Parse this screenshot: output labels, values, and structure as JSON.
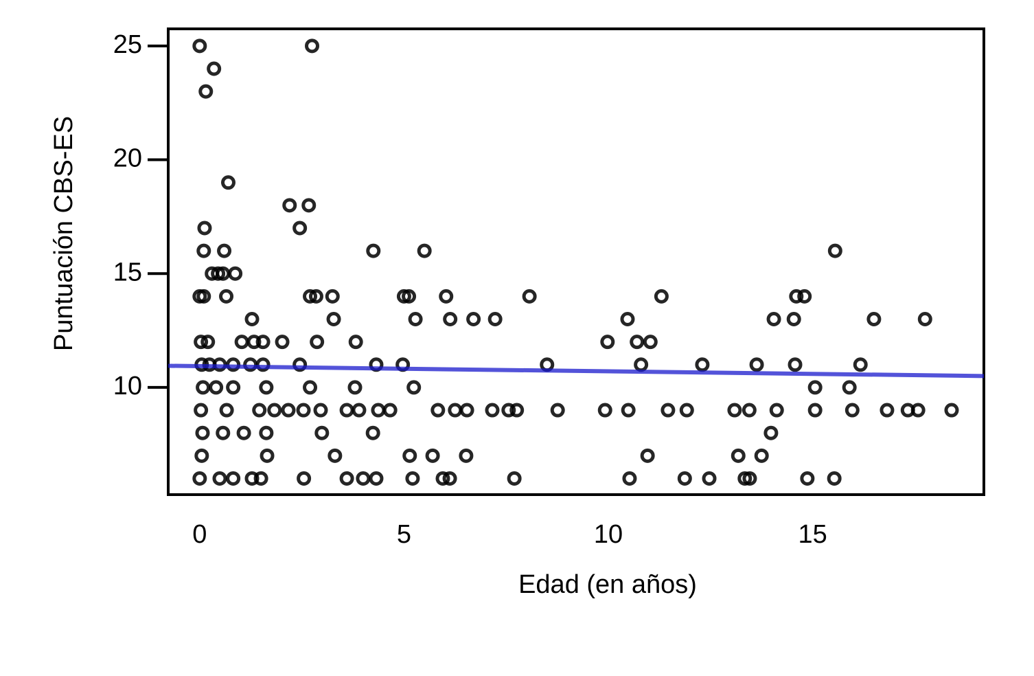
{
  "chart_data": {
    "type": "scatter",
    "x_label": "Edad (en años)",
    "y_label": "Puntuación CBS-ES",
    "xlim": [
      -0.77,
      19.19
    ],
    "ylim": [
      5.29,
      25.75
    ],
    "xticks": [
      0,
      5,
      10,
      15
    ],
    "yticks": [
      10,
      15,
      20,
      25
    ],
    "color": "#000000",
    "x": [
      0.0,
      2.75,
      0.35,
      0.15,
      0.7,
      2.2,
      2.67,
      0.12,
      2.45,
      0.1,
      0.6,
      4.25,
      5.5,
      15.55,
      0.3,
      0.45,
      0.57,
      0.87,
      0.0,
      0.1,
      0.65,
      2.7,
      2.85,
      3.25,
      5.0,
      5.12,
      6.03,
      8.07,
      11.3,
      14.6,
      14.8,
      1.28,
      3.28,
      5.28,
      6.13,
      6.7,
      7.23,
      10.47,
      14.05,
      14.54,
      16.5,
      17.75,
      0.03,
      0.2,
      1.03,
      1.33,
      1.55,
      2.02,
      2.87,
      3.82,
      9.98,
      10.7,
      11.03,
      0.05,
      0.24,
      0.49,
      0.82,
      1.24,
      1.55,
      2.45,
      4.32,
      4.97,
      8.5,
      10.8,
      12.3,
      13.63,
      14.57,
      16.17,
      0.08,
      0.4,
      0.82,
      1.63,
      2.7,
      3.8,
      5.24,
      15.06,
      15.9,
      0.03,
      0.66,
      1.46,
      1.83,
      2.17,
      2.54,
      2.96,
      3.6,
      3.9,
      4.37,
      4.66,
      5.83,
      6.25,
      6.54,
      7.16,
      7.56,
      7.76,
      8.76,
      9.92,
      10.49,
      11.46,
      11.92,
      13.09,
      13.45,
      14.12,
      15.06,
      15.97,
      16.82,
      17.33,
      17.58,
      18.4,
      0.07,
      0.57,
      1.08,
      1.63,
      2.99,
      4.24,
      13.98,
      0.05,
      1.65,
      3.31,
      5.14,
      5.7,
      6.52,
      10.96,
      13.18,
      13.75,
      0.0,
      0.49,
      0.82,
      1.28,
      1.5,
      2.55,
      3.6,
      4.0,
      4.32,
      5.21,
      5.95,
      6.12,
      7.7,
      10.52,
      11.87,
      12.47,
      13.34,
      13.46,
      14.87,
      15.53
    ],
    "values": [
      25,
      25,
      24,
      23,
      19,
      18,
      18,
      17,
      17,
      16,
      16,
      16,
      16,
      16,
      15,
      15,
      15,
      15,
      14,
      14,
      14,
      14,
      14,
      14,
      14,
      14,
      14,
      14,
      14,
      14,
      14,
      13,
      13,
      13,
      13,
      13,
      13,
      13,
      13,
      13,
      13,
      13,
      12,
      12,
      12,
      12,
      12,
      12,
      12,
      12,
      12,
      12,
      12,
      11,
      11,
      11,
      11,
      11,
      11,
      11,
      11,
      11,
      11,
      11,
      11,
      11,
      11,
      11,
      10,
      10,
      10,
      10,
      10,
      10,
      10,
      10,
      10,
      9,
      9,
      9,
      9,
      9,
      9,
      9,
      9,
      9,
      9,
      9,
      9,
      9,
      9,
      9,
      9,
      9,
      9,
      9,
      9,
      9,
      9,
      9,
      9,
      9,
      9,
      9,
      9,
      9,
      9,
      9,
      8,
      8,
      8,
      8,
      8,
      8,
      8,
      7,
      7,
      7,
      7,
      7,
      7,
      7,
      7,
      7,
      6,
      6,
      6,
      6,
      6,
      6,
      6,
      6,
      6,
      6,
      6,
      6,
      6,
      6,
      6,
      6,
      6,
      6,
      6,
      6
    ],
    "trend_line": {
      "x": [
        -0.77,
        19.19
      ],
      "values": [
        10.95,
        10.5
      ],
      "color": "#1a1acc"
    }
  }
}
